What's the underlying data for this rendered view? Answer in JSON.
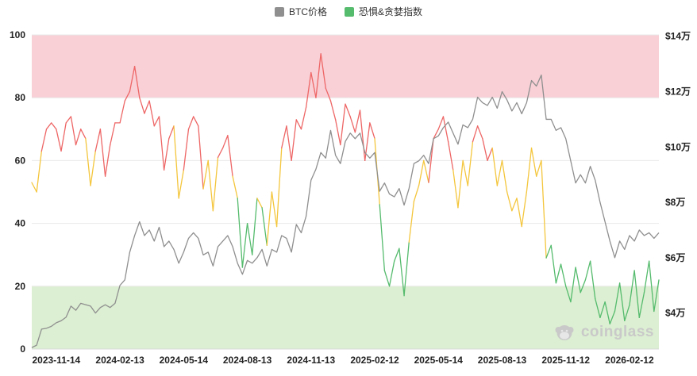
{
  "watermark": {
    "text": "coinglass"
  },
  "chart_data": {
    "type": "line",
    "title": "",
    "legend_items": [
      {
        "label": "BTC价格",
        "color": "#8f8f8f"
      },
      {
        "label": "恐惧&贪婪指数",
        "color": "#55bb6d"
      }
    ],
    "x_axis": {
      "tick_labels": [
        "2023-11-14",
        "2024-02-13",
        "2024-05-14",
        "2024-08-13",
        "2024-11-13",
        "2025-02-12",
        "2025-05-14",
        "2025-08-13",
        "2025-11-12",
        "2026-02-12"
      ],
      "tick_indices": [
        5,
        18,
        31,
        44,
        57,
        70,
        83,
        96,
        109,
        122
      ]
    },
    "left_axis": {
      "min": 0,
      "max": 100,
      "ticks": [
        0,
        20,
        40,
        60,
        80,
        100
      ]
    },
    "right_axis": {
      "tick_labels": [
        "$4万",
        "$6万",
        "$8万",
        "$10万",
        "$12万",
        "$14万"
      ],
      "tick_values": [
        4,
        6,
        8,
        10,
        12,
        14
      ],
      "plot_min_wan": 2.7,
      "plot_max_wan": 14.05
    },
    "bands": [
      {
        "from": 80,
        "to": 100,
        "color": "#f8d0d6",
        "meaning": "extreme-greed"
      },
      {
        "from": 0,
        "to": 20,
        "color": "#dcefd2",
        "meaning": "extreme-fear"
      }
    ],
    "fng_color_rules": {
      "greed_min": 60,
      "fear_max": 40,
      "greed_color": "#ee6666",
      "neutral_color": "#f4c63d",
      "fear_color": "#55bb6d"
    },
    "grid_color": "#e9e9e9",
    "axis_line_color": "#d8d8d8",
    "axis_text_color": "#222222",
    "series": {
      "btc_price_wan": [
        2.75,
        2.84,
        3.42,
        3.45,
        3.52,
        3.65,
        3.72,
        3.85,
        4.25,
        4.1,
        4.35,
        4.3,
        4.25,
        4.0,
        4.2,
        4.3,
        4.2,
        4.35,
        5.0,
        5.2,
        6.2,
        6.8,
        7.3,
        6.8,
        7.0,
        6.6,
        7.1,
        6.4,
        6.6,
        6.3,
        5.8,
        6.2,
        6.7,
        6.9,
        6.7,
        6.1,
        6.2,
        5.7,
        6.4,
        6.6,
        6.8,
        6.4,
        5.8,
        5.4,
        5.9,
        5.8,
        6.0,
        6.3,
        5.7,
        6.3,
        6.2,
        6.8,
        6.7,
        6.2,
        7.2,
        6.9,
        7.5,
        8.8,
        9.2,
        9.8,
        9.6,
        10.6,
        9.7,
        9.4,
        10.2,
        10.5,
        10.3,
        10.5,
        9.8,
        9.6,
        9.8,
        8.4,
        8.7,
        8.3,
        8.2,
        8.5,
        7.9,
        8.5,
        9.4,
        9.5,
        9.7,
        9.4,
        10.3,
        10.4,
        10.7,
        10.9,
        10.5,
        10.1,
        10.8,
        10.7,
        11.0,
        11.8,
        11.6,
        11.5,
        11.8,
        11.4,
        12.0,
        11.7,
        11.3,
        11.6,
        11.2,
        11.6,
        12.4,
        12.2,
        12.6,
        11.0,
        11.0,
        10.6,
        10.7,
        10.3,
        9.5,
        8.7,
        9.0,
        8.7,
        9.3,
        8.8,
        8.0,
        7.3,
        6.6,
        6.0,
        6.6,
        6.3,
        6.8,
        6.6,
        7.0,
        6.8,
        6.9,
        6.7,
        6.9
      ],
      "fear_greed_index": [
        53,
        50,
        63,
        70,
        72,
        70,
        63,
        72,
        74,
        65,
        70,
        67,
        52,
        63,
        70,
        55,
        65,
        72,
        72,
        79,
        82,
        90,
        80,
        75,
        79,
        71,
        74,
        57,
        67,
        71,
        48,
        57,
        70,
        74,
        71,
        51,
        60,
        44,
        61,
        64,
        68,
        55,
        48,
        26,
        40,
        30,
        48,
        45,
        33,
        50,
        39,
        64,
        71,
        60,
        73,
        70,
        77,
        88,
        80,
        94,
        83,
        79,
        73,
        65,
        78,
        74,
        69,
        76,
        60,
        72,
        67,
        46,
        25,
        20,
        28,
        32,
        17,
        34,
        47,
        52,
        60,
        53,
        67,
        70,
        74,
        66,
        57,
        45,
        60,
        52,
        66,
        71,
        67,
        60,
        64,
        52,
        60,
        50,
        44,
        48,
        39,
        50,
        64,
        55,
        60,
        29,
        33,
        21,
        27,
        20,
        15,
        26,
        18,
        22,
        28,
        16,
        10,
        15,
        8,
        12,
        21,
        9,
        14,
        25,
        10,
        18,
        28,
        12,
        22
      ]
    }
  }
}
